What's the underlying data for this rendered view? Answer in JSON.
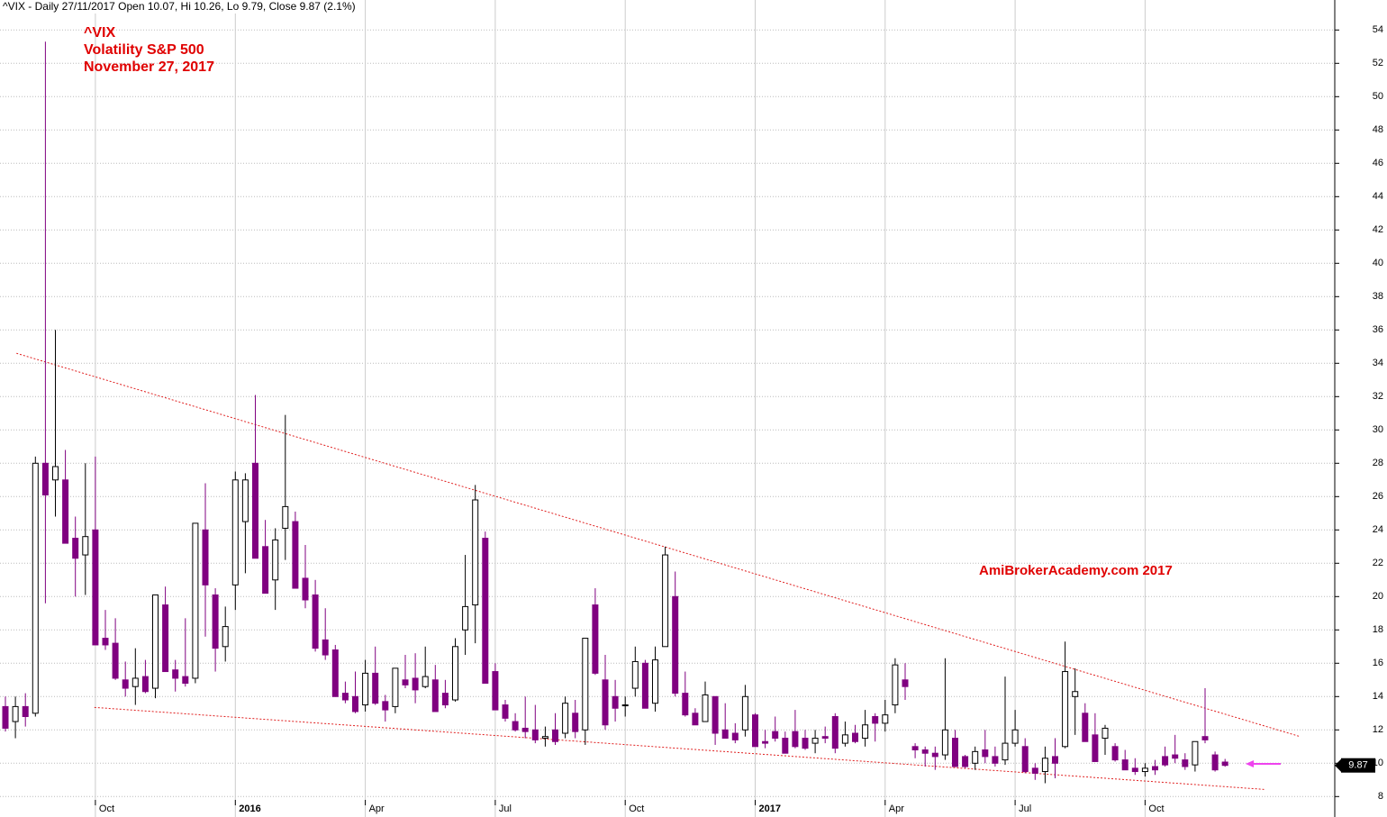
{
  "chart_data": {
    "type": "candlestick",
    "header": "^VIX - Daily 27/11/2017 Open 10.07, Hi 10.26, Lo 9.79, Close 9.87 (2.1%)",
    "title": "^VIX",
    "subtitle": "Volatility S&P 500",
    "date_label": "November 27, 2017",
    "watermark": "AmiBrokerAcademy.com 2017",
    "categories": [
      null,
      null,
      null,
      null,
      null,
      null,
      null,
      null,
      null,
      "Oct",
      null,
      null,
      null,
      null,
      null,
      null,
      null,
      null,
      null,
      null,
      null,
      null,
      null,
      "2016",
      null,
      null,
      null,
      null,
      null,
      null,
      null,
      null,
      null,
      null,
      null,
      null,
      "Apr",
      null,
      null,
      null,
      null,
      null,
      null,
      null,
      null,
      null,
      null,
      null,
      null,
      "Jul",
      null,
      null,
      null,
      null,
      null,
      null,
      null,
      null,
      null,
      null,
      null,
      null,
      "Oct",
      null,
      null,
      null,
      null,
      null,
      null,
      null,
      null,
      null,
      null,
      null,
      null,
      "2017",
      null,
      null,
      null,
      null,
      null,
      null,
      null,
      null,
      null,
      null,
      null,
      null,
      "Apr",
      null,
      null,
      null,
      null,
      null,
      null,
      null,
      null,
      null,
      null,
      null,
      null,
      "Jul",
      null,
      null,
      null,
      null,
      null,
      null,
      null,
      null,
      null,
      null,
      null,
      null,
      "Oct",
      null,
      null,
      null,
      null,
      null,
      null,
      null,
      null
    ],
    "open": [
      13.4,
      12.5,
      13.4,
      13.0,
      28.0,
      27.0,
      27.0,
      23.5,
      22.5,
      24.0,
      17.5,
      17.2,
      15.0,
      14.6,
      15.2,
      14.5,
      19.5,
      15.6,
      15.2,
      15.1,
      24.0,
      20.1,
      17.0,
      20.7,
      24.5,
      28.0,
      23.0,
      21.0,
      24.1,
      24.5,
      21.1,
      20.1,
      17.4,
      16.8,
      14.2,
      14.0,
      13.5,
      15.4,
      13.7,
      13.4,
      15.0,
      15.1,
      14.6,
      15.0,
      14.2,
      13.8,
      18.0,
      19.5,
      23.5,
      15.5,
      13.5,
      12.5,
      12.1,
      12.0,
      11.5,
      12.0,
      11.8,
      13.0,
      12.0,
      19.5,
      15.0,
      14.0,
      13.5,
      14.5,
      16.0,
      13.6,
      17.0,
      20.0,
      14.2,
      13.0,
      12.5,
      14.0,
      12.0,
      11.8,
      12.0,
      12.9,
      11.3,
      11.9,
      11.5,
      11.9,
      11.5,
      11.2,
      11.6,
      12.8,
      11.2,
      11.8,
      11.5,
      12.8,
      12.4,
      13.5,
      15.0,
      11.0,
      10.8,
      10.6,
      10.5,
      11.5,
      10.4,
      10.0,
      10.8,
      10.4,
      10.2,
      11.2,
      11.0,
      9.7,
      9.5,
      10.4,
      11.0,
      14.0,
      13.0,
      11.7,
      11.5,
      11.0,
      10.2,
      9.7,
      9.5,
      9.8,
      10.4,
      10.5,
      10.2,
      9.9,
      11.6,
      10.5,
      10.07
    ],
    "high": [
      14.0,
      14.0,
      14.2,
      28.4,
      53.3,
      36.0,
      28.8,
      24.8,
      28.0,
      28.4,
      19.2,
      18.7,
      16.1,
      16.9,
      16.2,
      20.1,
      20.6,
      16.2,
      18.7,
      24.4,
      26.8,
      20.5,
      19.4,
      27.5,
      27.4,
      32.1,
      24.6,
      24.1,
      30.9,
      25.1,
      23.1,
      21.0,
      19.3,
      17.1,
      14.9,
      15.5,
      16.2,
      17.0,
      14.1,
      15.7,
      16.5,
      16.6,
      17.0,
      15.9,
      15.0,
      17.5,
      22.5,
      26.7,
      23.9,
      16.0,
      13.8,
      13.0,
      14.0,
      13.5,
      12.2,
      13.0,
      14.0,
      13.8,
      17.5,
      20.5,
      16.5,
      15.0,
      14.0,
      17.0,
      16.2,
      17.0,
      23.0,
      21.5,
      15.5,
      13.3,
      14.9,
      14.0,
      13.6,
      12.4,
      14.7,
      13.0,
      12.0,
      12.8,
      11.9,
      13.2,
      12.0,
      12.0,
      12.2,
      13.0,
      12.5,
      12.3,
      13.2,
      13.0,
      13.8,
      16.3,
      16.0,
      11.2,
      11.0,
      11.0,
      16.3,
      12.0,
      10.5,
      11.0,
      12.0,
      11.0,
      15.2,
      13.2,
      11.5,
      10.0,
      11.0,
      11.5,
      17.3,
      15.7,
      13.6,
      13.0,
      12.3,
      11.2,
      10.8,
      10.3,
      10.0,
      10.2,
      11.0,
      11.7,
      10.6,
      11.2,
      14.5,
      10.7,
      10.26
    ],
    "low": [
      11.9,
      11.5,
      12.2,
      12.8,
      19.6,
      24.8,
      23.2,
      20.0,
      20.1,
      17.3,
      16.8,
      15.0,
      14.0,
      13.5,
      14.2,
      13.9,
      15.5,
      14.3,
      14.6,
      14.8,
      17.6,
      15.5,
      16.1,
      19.2,
      21.4,
      22.3,
      20.2,
      19.2,
      22.2,
      20.5,
      19.3,
      16.7,
      16.2,
      14.0,
      13.6,
      13.0,
      13.1,
      13.5,
      12.5,
      13.0,
      14.5,
      13.6,
      14.5,
      13.1,
      13.3,
      13.7,
      16.5,
      17.2,
      14.8,
      13.2,
      12.5,
      11.9,
      11.5,
      11.2,
      11.0,
      11.1,
      11.5,
      11.5,
      11.1,
      15.3,
      12.0,
      12.5,
      12.8,
      14.0,
      13.3,
      13.1,
      17.0,
      14.0,
      12.8,
      12.3,
      12.6,
      11.1,
      11.5,
      11.2,
      11.6,
      11.0,
      10.9,
      11.3,
      10.6,
      10.9,
      10.8,
      10.6,
      11.2,
      10.6,
      11.0,
      11.2,
      11.0,
      11.3,
      11.9,
      13.0,
      13.8,
      10.3,
      9.8,
      9.6,
      10.2,
      9.8,
      9.7,
      9.6,
      10.0,
      9.8,
      9.9,
      11.0,
      9.4,
      9.0,
      8.8,
      9.1,
      10.9,
      11.7,
      11.3,
      10.1,
      10.5,
      10.1,
      9.6,
      9.3,
      9.2,
      9.3,
      9.8,
      10.0,
      9.6,
      9.5,
      11.2,
      9.5,
      9.79
    ],
    "close": [
      12.1,
      13.4,
      12.8,
      28.0,
      26.1,
      27.8,
      23.2,
      22.3,
      23.6,
      17.1,
      17.1,
      15.1,
      14.5,
      15.1,
      14.3,
      20.1,
      15.5,
      15.1,
      14.8,
      24.4,
      20.7,
      16.9,
      18.2,
      27.0,
      27.0,
      22.3,
      20.2,
      23.4,
      25.4,
      20.5,
      19.8,
      16.9,
      16.5,
      14.0,
      13.8,
      13.1,
      15.4,
      13.6,
      13.2,
      15.7,
      14.7,
      14.4,
      15.2,
      13.1,
      13.5,
      17.0,
      19.4,
      25.8,
      14.8,
      13.2,
      12.7,
      12.0,
      11.9,
      11.4,
      11.6,
      11.3,
      13.6,
      11.9,
      17.5,
      15.4,
      12.3,
      13.3,
      13.5,
      16.1,
      13.3,
      16.2,
      22.5,
      14.2,
      12.9,
      12.3,
      14.1,
      11.8,
      11.5,
      11.4,
      14.0,
      11.0,
      11.2,
      11.5,
      10.6,
      11.0,
      10.9,
      11.5,
      11.5,
      10.9,
      11.7,
      11.3,
      12.3,
      12.4,
      12.9,
      15.9,
      14.6,
      10.8,
      10.6,
      10.4,
      12.0,
      9.8,
      9.8,
      10.7,
      10.4,
      10.0,
      11.2,
      12.0,
      9.5,
      9.4,
      10.3,
      10.0,
      15.5,
      14.3,
      11.3,
      10.1,
      12.1,
      10.2,
      9.6,
      9.5,
      9.7,
      9.6,
      9.9,
      10.3,
      9.8,
      11.3,
      11.4,
      9.6,
      9.87
    ],
    "up_color": "#ffffff",
    "down_color": "#800080",
    "wick_color": "#000000",
    "ylim": [
      7.8,
      55.8
    ],
    "yticks": [
      8,
      10,
      12,
      14,
      16,
      18,
      20,
      22,
      24,
      26,
      28,
      30,
      32,
      34,
      36,
      38,
      40,
      42,
      44,
      46,
      48,
      50,
      52,
      54
    ],
    "grid": true,
    "last_value": 9.87,
    "trendlines": [
      {
        "from": [
          1.1,
          34.6
        ],
        "to": [
          129.5,
          11.6
        ],
        "color": "#e02020"
      },
      {
        "from": [
          8.9,
          13.35
        ],
        "to": [
          125.9,
          8.43
        ],
        "color": "#e02020"
      }
    ]
  }
}
